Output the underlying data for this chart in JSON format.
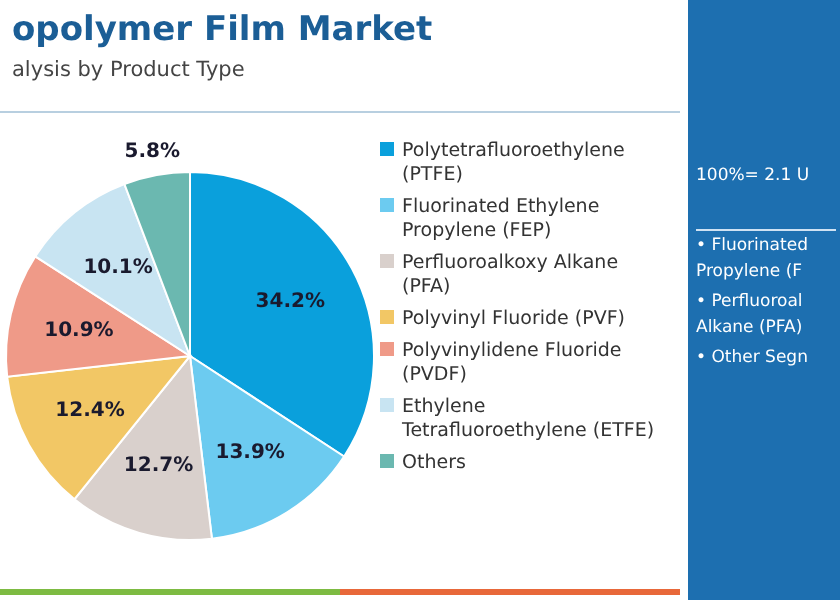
{
  "chart_data": {
    "type": "pie",
    "title": "opolymer Film Market",
    "subtitle": "alysis by Product Type",
    "categories": [
      "Polytetrafluoroethylene (PTFE)",
      "Fluorinated Ethylene Propylene (FEP)",
      "Perfluoroalkoxy Alkane (PFA)",
      "Polyvinyl Fluoride (PVF)",
      "Polyvinylidene Fluoride (PVDF)",
      "Ethylene Tetrafluoroethylene (ETFE)",
      "Others"
    ],
    "values": [
      34.2,
      13.9,
      12.7,
      12.4,
      10.9,
      10.1,
      5.8
    ],
    "colors": [
      "#0aa0dc",
      "#6ccbf0",
      "#d9d0cc",
      "#f2c765",
      "#ef9a88",
      "#c8e4f2",
      "#6bb8b0"
    ],
    "value_labels": [
      "34.2%",
      "13.9%",
      "12.7%",
      "12.4%",
      "10.9%",
      "10.1%",
      "5.8%"
    ],
    "legend": "right",
    "annotations": [
      "100%= 2.1 U",
      "• Fluorinated Propylene (F",
      "• Perfluoroal Alkane (PFA)",
      "• Other Segn"
    ]
  }
}
